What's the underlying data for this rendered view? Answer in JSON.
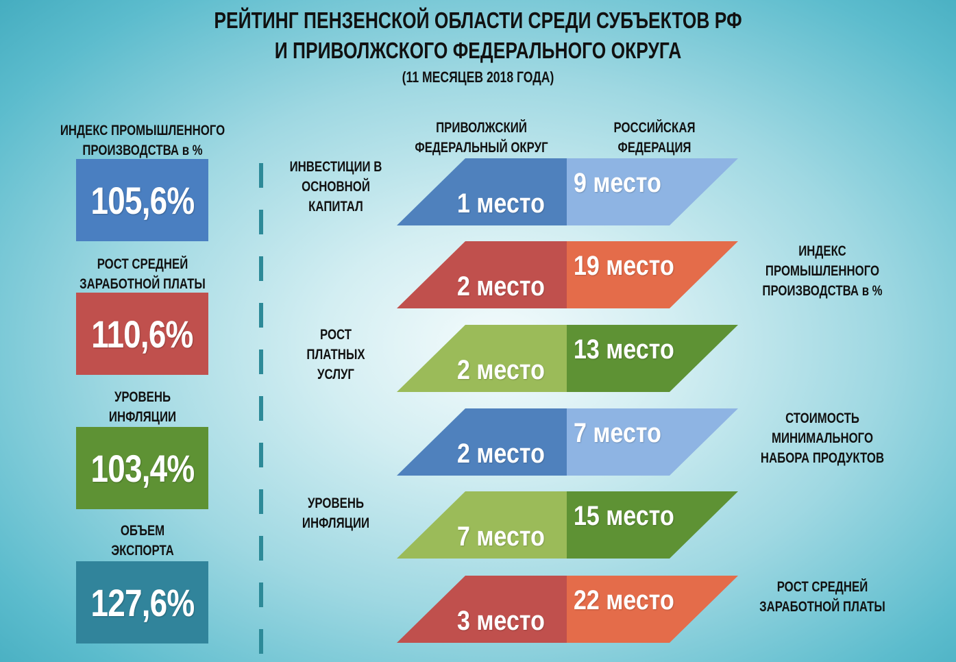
{
  "header": {
    "title_line1": "РЕЙТИНГ ПЕНЗЕНСКОЙ ОБЛАСТИ СРЕДИ СУБЪЕКТОВ РФ",
    "title_line2": "И ПРИВОЛЖСКОГО ФЕДЕРАЛЬНОГО ОКРУГА",
    "subtitle": "(11 МЕСЯЦЕВ 2018 ГОДА)"
  },
  "left_indicators": [
    {
      "label_line1": "ИНДЕКС ПРОМЫШЛЕННОГО",
      "label_line2": "ПРОИЗВОДСТВА в %",
      "value": "105,6%",
      "color": "#4a7fc1"
    },
    {
      "label_line1": "РОСТ СРЕДНЕЙ",
      "label_line2": "ЗАРАБОТНОЙ ПЛАТЫ",
      "value": "110,6%",
      "color": "#c0504d"
    },
    {
      "label_line1": "УРОВЕНЬ",
      "label_line2": "ИНФЛЯЦИИ",
      "value": "103,4%",
      "color": "#5e9234"
    },
    {
      "label_line1": "ОБЪЕМ",
      "label_line2": "ЭКСПОРТА",
      "value": "127,6%",
      "color": "#31849b"
    }
  ],
  "columns": {
    "pfo_line1": "ПРИВОЛЖСКИЙ",
    "pfo_line2": "ФЕДЕРАЛЬНЫЙ ОКРУГ",
    "rf_line1": "РОССИЙСКАЯ",
    "rf_line2": "ФЕДЕРАЦИЯ"
  },
  "rankings": [
    {
      "pfo": "1 место",
      "rf": "9 место",
      "pfo_color": "#4f81bd",
      "rf_color": "#8eb4e3",
      "side": "left",
      "label": [
        "ИНВЕСТИЦИИ В",
        "ОСНОВНОЙ",
        "КАПИТАЛ"
      ]
    },
    {
      "pfo": "2 место",
      "rf": "19 место",
      "pfo_color": "#c0504d",
      "rf_color": "#e46c4a",
      "side": "right",
      "label": [
        "ИНДЕКС",
        "ПРОМЫШЛЕННОГО",
        "ПРОИЗВОДСТВА в %"
      ]
    },
    {
      "pfo": "2 место",
      "rf": "13 место",
      "pfo_color": "#9bbb59",
      "rf_color": "#5e9234",
      "side": "left",
      "label": [
        "РОСТ",
        "ПЛАТНЫХ",
        "УСЛУГ"
      ]
    },
    {
      "pfo": "2 место",
      "rf": "7 место",
      "pfo_color": "#4f81bd",
      "rf_color": "#8eb4e3",
      "side": "right",
      "label": [
        "СТОИМОСТЬ",
        "МИНИМАЛЬНОГО",
        "НАБОРА ПРОДУКТОВ"
      ]
    },
    {
      "pfo": "7 место",
      "rf": "15 место",
      "pfo_color": "#9bbb59",
      "rf_color": "#5e9234",
      "side": "left",
      "label": [
        "УРОВЕНЬ",
        "ИНФЛЯЦИИ"
      ]
    },
    {
      "pfo": "3 место",
      "rf": "22 место",
      "pfo_color": "#c0504d",
      "rf_color": "#e46c4a",
      "side": "right",
      "label": [
        "РОСТ СРЕДНЕЙ",
        "ЗАРАБОТНОЙ ПЛАТЫ"
      ]
    }
  ]
}
